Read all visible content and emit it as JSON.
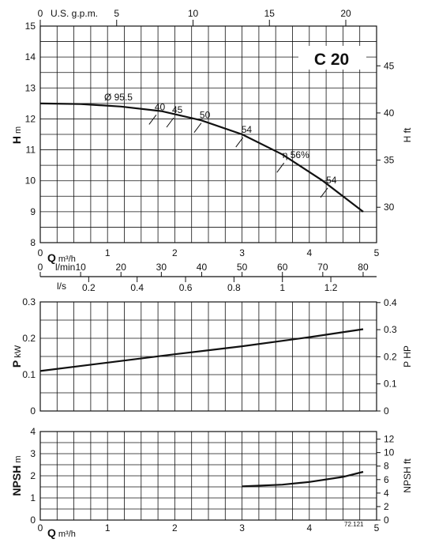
{
  "chart_data": [
    {
      "type": "line",
      "title": "C 20",
      "ylabel": "H",
      "ylabel_unit": "m",
      "y2label": "H ft",
      "xlim": [
        0,
        5
      ],
      "ylim": [
        8,
        15
      ],
      "y_ticks": [
        8,
        9,
        10,
        11,
        12,
        13,
        14,
        15
      ],
      "y2_ticks": [
        30,
        35,
        40,
        45
      ],
      "gpm_ticks": [
        0,
        5,
        10,
        15,
        20
      ],
      "gpm_label": "U.S. g.p.m.",
      "grid": true,
      "series": [
        {
          "name": "Ø 95.5",
          "x": [
            0,
            0.6,
            1.2,
            1.8,
            2.4,
            3.0,
            3.6,
            4.2,
            4.8
          ],
          "y": [
            12.5,
            12.48,
            12.4,
            12.25,
            11.95,
            11.5,
            10.85,
            10.0,
            9.0
          ]
        }
      ],
      "annotations": [
        {
          "text": "Ø 95.5",
          "x": 0.95,
          "y": 12.6
        },
        {
          "text": "40",
          "x": 1.7,
          "y": 12.28
        },
        {
          "text": "45",
          "x": 1.96,
          "y": 12.19
        },
        {
          "text": "50",
          "x": 2.37,
          "y": 12.02
        },
        {
          "text": "54",
          "x": 2.99,
          "y": 11.55
        },
        {
          "text": "η 56%",
          "x": 3.6,
          "y": 10.73
        },
        {
          "text": "54",
          "x": 4.25,
          "y": 9.92
        }
      ]
    },
    {
      "type": "axis",
      "q_label": "Q",
      "q_unit": "m³/h",
      "q_ticks": [
        0,
        1,
        2,
        3,
        4,
        5
      ],
      "lmin_label": "l/min",
      "lmin_ticks": [
        0,
        10,
        20,
        30,
        40,
        50,
        60,
        70,
        80
      ],
      "ls_label": "l/s",
      "ls_ticks": [
        "0.2",
        "0.4",
        "0.6",
        "0.8",
        "1",
        "1.2"
      ]
    },
    {
      "type": "line",
      "ylabel": "P",
      "ylabel_unit": "kW",
      "y2label": "P HP",
      "xlim": [
        0,
        5
      ],
      "ylim": [
        0,
        0.3
      ],
      "y_ticks": [
        "0",
        "0.1",
        "0.2",
        "0.3"
      ],
      "y2_ticks": [
        "0",
        "0.1",
        "0.2",
        "0.3",
        "0.4"
      ],
      "grid": true,
      "series": [
        {
          "x": [
            0,
            1,
            2,
            3,
            4,
            4.8
          ],
          "y": [
            0.11,
            0.133,
            0.156,
            0.178,
            0.203,
            0.225
          ]
        }
      ]
    },
    {
      "type": "line",
      "ylabel": "NPSH",
      "ylabel_unit": "m",
      "y2label": "NPSH ft",
      "xlim": [
        0,
        5
      ],
      "ylim": [
        0,
        4
      ],
      "y_ticks": [
        0,
        1,
        2,
        3,
        4
      ],
      "y2_ticks": [
        0,
        2,
        4,
        6,
        8,
        10,
        12
      ],
      "grid": true,
      "series": [
        {
          "x": [
            3.0,
            3.6,
            4.0,
            4.5,
            4.8
          ],
          "y": [
            1.52,
            1.6,
            1.72,
            1.95,
            2.18
          ]
        }
      ],
      "x_ticks": [
        0,
        1,
        2,
        3,
        4,
        5
      ],
      "xlabel": "Q",
      "xlabel_unit": "m³/h",
      "code": "72.121"
    }
  ]
}
